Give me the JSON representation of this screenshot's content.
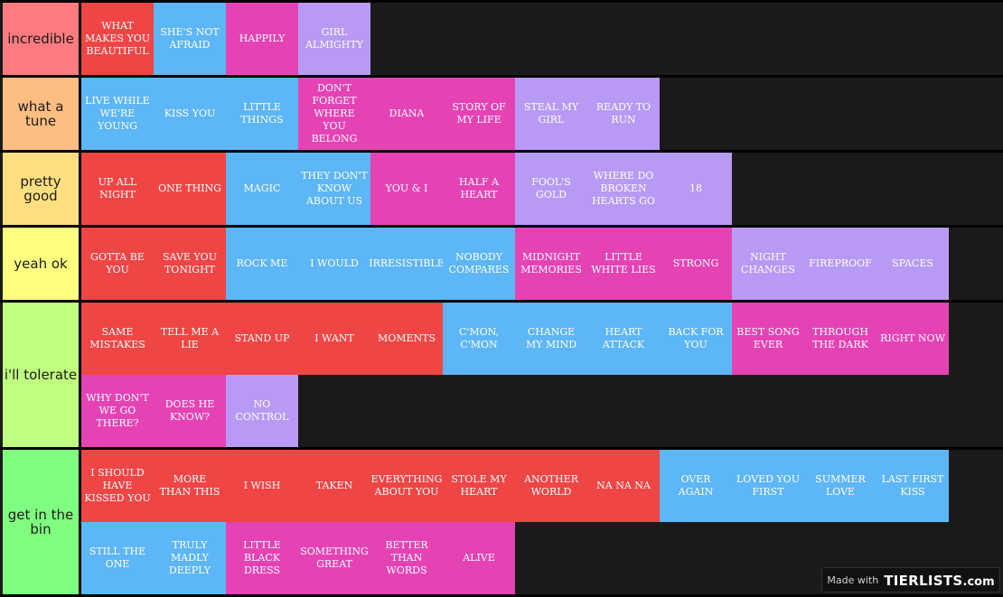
{
  "colors": {
    "red": "#f04545",
    "blue": "#5db6f5",
    "pink": "#e543b4",
    "lavender": "#b89af5",
    "background": "#1a1a1a"
  },
  "tiers": [
    {
      "label": "incredible",
      "color": "#ff7b7f",
      "items": [
        {
          "text": "WHAT MAKES YOU BEAUTIFUL",
          "color": "red"
        },
        {
          "text": "SHE'S NOT AFRAID",
          "color": "blue"
        },
        {
          "text": "HAPPILY",
          "color": "pink"
        },
        {
          "text": "GIRL ALMIGHTY",
          "color": "lavender"
        }
      ]
    },
    {
      "label": "what a tune",
      "color": "#ffbe81",
      "items": [
        {
          "text": "LIVE WHILE WE'RE YOUNG",
          "color": "blue"
        },
        {
          "text": "KISS YOU",
          "color": "blue"
        },
        {
          "text": "LITTLE THINGS",
          "color": "blue"
        },
        {
          "text": "DON'T FORGET WHERE YOU BELONG",
          "color": "pink"
        },
        {
          "text": "DIANA",
          "color": "pink"
        },
        {
          "text": "STORY OF MY LIFE",
          "color": "pink"
        },
        {
          "text": "STEAL MY GIRL",
          "color": "lavender"
        },
        {
          "text": "READY TO RUN",
          "color": "lavender"
        }
      ]
    },
    {
      "label": "pretty good",
      "color": "#ffdf80",
      "items": [
        {
          "text": "UP ALL NIGHT",
          "color": "red"
        },
        {
          "text": "ONE THING",
          "color": "red"
        },
        {
          "text": "MAGIC",
          "color": "blue"
        },
        {
          "text": "THEY DON'T KNOW ABOUT US",
          "color": "blue"
        },
        {
          "text": "YOU & I",
          "color": "pink"
        },
        {
          "text": "HALF A HEART",
          "color": "pink"
        },
        {
          "text": "FOOL'S GOLD",
          "color": "lavender"
        },
        {
          "text": "WHERE DO BROKEN HEARTS GO",
          "color": "lavender"
        },
        {
          "text": "18",
          "color": "lavender"
        }
      ]
    },
    {
      "label": "yeah ok",
      "color": "#feff7f",
      "items": [
        {
          "text": "GOTTA BE YOU",
          "color": "red"
        },
        {
          "text": "SAVE YOU TONIGHT",
          "color": "red"
        },
        {
          "text": "ROCK ME",
          "color": "blue"
        },
        {
          "text": "I WOULD",
          "color": "blue"
        },
        {
          "text": "IRRESISTIBLE",
          "color": "blue"
        },
        {
          "text": "NOBODY COMPARES",
          "color": "blue"
        },
        {
          "text": "MIDNIGHT MEMORIES",
          "color": "pink"
        },
        {
          "text": "LITTLE WHITE LIES",
          "color": "pink"
        },
        {
          "text": "STRONG",
          "color": "pink"
        },
        {
          "text": "NIGHT CHANGES",
          "color": "lavender"
        },
        {
          "text": "FIREPROOF",
          "color": "lavender"
        },
        {
          "text": "SPACES",
          "color": "lavender"
        }
      ]
    },
    {
      "label": "i'll tolerate",
      "color": "#bfff7f",
      "items": [
        {
          "text": "SAME MISTAKES",
          "color": "red"
        },
        {
          "text": "TELL ME A LIE",
          "color": "red"
        },
        {
          "text": "STAND UP",
          "color": "red"
        },
        {
          "text": "I WANT",
          "color": "red"
        },
        {
          "text": "MOMENTS",
          "color": "red"
        },
        {
          "text": "C'MON, C'MON",
          "color": "blue"
        },
        {
          "text": "CHANGE MY MIND",
          "color": "blue"
        },
        {
          "text": "HEART ATTACK",
          "color": "blue"
        },
        {
          "text": "BACK FOR YOU",
          "color": "blue"
        },
        {
          "text": "BEST SONG EVER",
          "color": "pink"
        },
        {
          "text": "THROUGH THE DARK",
          "color": "pink"
        },
        {
          "text": "RIGHT NOW",
          "color": "pink"
        },
        {
          "text": "WHY DON'T WE GO THERE?",
          "color": "pink"
        },
        {
          "text": "DOES HE KNOW?",
          "color": "pink"
        },
        {
          "text": "NO CONTROL",
          "color": "lavender"
        }
      ]
    },
    {
      "label": "get in the bin",
      "color": "#7fff7f",
      "items": [
        {
          "text": "I SHOULD HAVE KISSED YOU",
          "color": "red"
        },
        {
          "text": "MORE THAN THIS",
          "color": "red"
        },
        {
          "text": "I WISH",
          "color": "red"
        },
        {
          "text": "TAKEN",
          "color": "red"
        },
        {
          "text": "EVERYTHING ABOUT YOU",
          "color": "red"
        },
        {
          "text": "STOLE MY HEART",
          "color": "red"
        },
        {
          "text": "ANOTHER WORLD",
          "color": "red"
        },
        {
          "text": "NA NA NA",
          "color": "red"
        },
        {
          "text": "OVER AGAIN",
          "color": "blue"
        },
        {
          "text": "LOVED YOU FIRST",
          "color": "blue"
        },
        {
          "text": "SUMMER LOVE",
          "color": "blue"
        },
        {
          "text": "LAST FIRST KISS",
          "color": "blue"
        },
        {
          "text": "STILL THE ONE",
          "color": "blue"
        },
        {
          "text": "TRULY MADLY DEEPLY",
          "color": "blue"
        },
        {
          "text": "LITTLE BLACK DRESS",
          "color": "pink"
        },
        {
          "text": "SOMETHING GREAT",
          "color": "pink"
        },
        {
          "text": "BETTER THAN WORDS",
          "color": "pink"
        },
        {
          "text": "ALIVE",
          "color": "pink"
        }
      ]
    }
  ],
  "watermark": {
    "made_with": "Made with",
    "logo": "TIERLISTS",
    "logo_suffix": ".com"
  }
}
